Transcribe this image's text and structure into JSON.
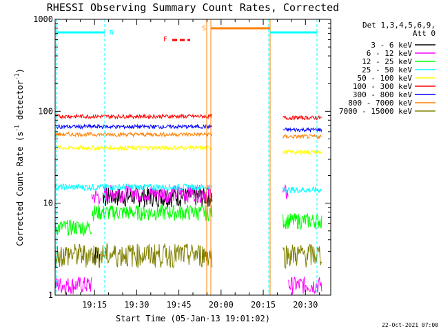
{
  "chart_data": {
    "type": "line",
    "title": "RHESSI Observing Summary Count Rates, Corrected",
    "xlabel": "Start Time (05-Jan-13 19:01:02)",
    "ylabel_main": "Corrected Count Rate (s",
    "ylabel_sup1": "-1",
    "ylabel_mid": " detector",
    "ylabel_sup2": "-1",
    "ylabel_end": ")",
    "y_scale": "log",
    "ylim": [
      1,
      1000
    ],
    "y_ticks": [
      {
        "value": 1,
        "label": "1"
      },
      {
        "value": 10,
        "label": "10"
      },
      {
        "value": 100,
        "label": "100"
      },
      {
        "value": 1000,
        "label": "1000"
      }
    ],
    "x_ticks": [
      {
        "minutes": 15,
        "label": "19:15"
      },
      {
        "minutes": 30,
        "label": "19:30"
      },
      {
        "minutes": 45,
        "label": "19:45"
      },
      {
        "minutes": 60,
        "label": "20:00"
      },
      {
        "minutes": 75,
        "label": "20:15"
      },
      {
        "minutes": 90,
        "label": "20:30"
      }
    ],
    "x_range_minutes_after_19": [
      1,
      99
    ],
    "legend_header": [
      "Det 1,3,4,5,6,9,",
      "Att 0"
    ],
    "legend_position": "right",
    "series": [
      {
        "name": "3 - 6 keV",
        "color": "#000000",
        "segments": [
          [
            14,
            17,
            2.8
          ],
          [
            18,
            57,
            12
          ]
        ],
        "noise": 0.25
      },
      {
        "name": "6 - 12 keV",
        "color": "#ff00ff",
        "segments": [
          [
            1,
            14,
            1.3
          ],
          [
            14,
            17,
            12
          ],
          [
            18,
            57,
            13
          ],
          [
            82,
            84,
            13
          ],
          [
            84,
            96,
            1.3
          ]
        ],
        "noise": 0.22
      },
      {
        "name": "12 - 25 keV",
        "color": "#00ff00",
        "segments": [
          [
            1,
            14,
            5.5
          ],
          [
            14,
            57,
            8
          ],
          [
            82,
            96,
            6.5
          ]
        ],
        "noise": 0.2
      },
      {
        "name": "25 - 50 keV",
        "color": "#00ffff",
        "segments": [
          [
            1,
            57,
            15
          ],
          [
            82,
            96,
            14
          ]
        ],
        "noise": 0.08
      },
      {
        "name": "50 - 100 keV",
        "color": "#ffff00",
        "segments": [
          [
            1,
            57,
            40
          ],
          [
            82,
            96,
            36
          ]
        ],
        "noise": 0.06
      },
      {
        "name": "100 - 300 keV",
        "color": "#ff0000",
        "segments": [
          [
            1,
            57,
            88
          ],
          [
            82,
            96,
            85
          ]
        ],
        "noise": 0.05
      },
      {
        "name": "300 - 800 keV",
        "color": "#0000ff",
        "segments": [
          [
            1,
            57,
            68
          ],
          [
            82,
            96,
            63
          ]
        ],
        "noise": 0.05
      },
      {
        "name": "800 - 7000 keV",
        "color": "#ff8000",
        "segments": [
          [
            1,
            57,
            56
          ],
          [
            82,
            96,
            53
          ]
        ],
        "noise": 0.05
      },
      {
        "name": "7000 - 15000 keV",
        "color": "#808000",
        "segments": [
          [
            1,
            57,
            2.8
          ],
          [
            82,
            96,
            2.8
          ]
        ],
        "noise": 0.3
      }
    ],
    "flags": [
      {
        "label": "N",
        "color": "#00ffff"
      },
      {
        "label": "F",
        "color": "#ff0000"
      },
      {
        "label": "S",
        "color": "#ff8000"
      }
    ],
    "footer_date": "22-Oct-2021 07:00"
  }
}
